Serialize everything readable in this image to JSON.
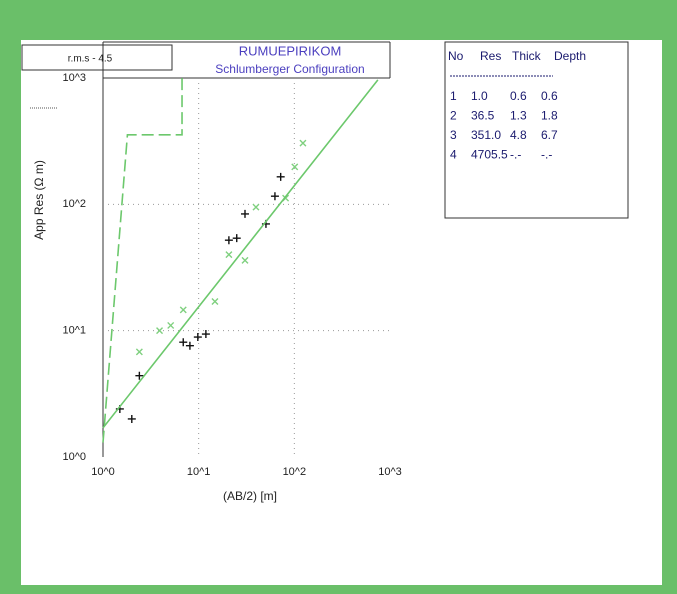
{
  "chart_data": {
    "type": "scatter",
    "title": "RUMUEPIRIKOM",
    "subtitle": "Schlumberger Configuration",
    "rms_label": "r.m.s - 4.5",
    "x_label": "(AB/2) [m]",
    "y_label": "App Res  (Ω m)",
    "xscale": "log",
    "yscale": "log",
    "grid": true,
    "xlim": [
      1,
      1000
    ],
    "ylim": [
      1,
      1000
    ],
    "xticks": [
      {
        "value": 1,
        "label": "10^0"
      },
      {
        "value": 10,
        "label": "10^1"
      },
      {
        "value": 100,
        "label": "10^2"
      },
      {
        "value": 1000,
        "label": "10^3"
      }
    ],
    "yticks": [
      {
        "value": 1,
        "label": "10^0"
      },
      {
        "value": 10,
        "label": "10^1"
      },
      {
        "value": 100,
        "label": "10^2"
      },
      {
        "value": 1000,
        "label": "10^3"
      }
    ],
    "series": [
      {
        "marker": "+",
        "color": "#111111",
        "x": [
          1.5,
          2.0,
          2.4,
          6.9,
          8.1,
          9.8,
          11.9,
          20.7,
          25,
          30.5,
          50.5,
          62.7,
          72
        ],
        "values": [
          2.4,
          2.0,
          4.4,
          8.1,
          7.6,
          8.9,
          9.4,
          52,
          54,
          84,
          70,
          116,
          165
        ]
      },
      {
        "marker": "x",
        "color": "#7fd07f",
        "x": [
          2.4,
          3.9,
          5.1,
          6.9,
          14.8,
          20.7,
          30.5,
          39.7,
          81,
          101,
          123
        ],
        "values": [
          6.8,
          10,
          11,
          14.6,
          17,
          40,
          36,
          95,
          112,
          198,
          305
        ]
      },
      {
        "marker": "line",
        "color": "#6cc86c",
        "x": [
          1,
          747
        ],
        "values": [
          1.7,
          966
        ]
      },
      {
        "marker": "dashed",
        "color": "#6cc86c",
        "x": [
          1,
          1.8,
          6.7,
          6.7
        ],
        "values": [
          1.3,
          355,
          355,
          1000
        ]
      }
    ]
  },
  "table": {
    "header": [
      "No",
      "Res",
      "Thick",
      "Depth"
    ],
    "rows": [
      [
        "1",
        "1.0",
        "0.6",
        "0.6"
      ],
      [
        "2",
        "36.5",
        "1.3",
        "1.8"
      ],
      [
        "3",
        "351.0",
        "4.8",
        "6.7"
      ],
      [
        "4",
        "4705.5",
        "-.-",
        "-.-"
      ]
    ]
  }
}
